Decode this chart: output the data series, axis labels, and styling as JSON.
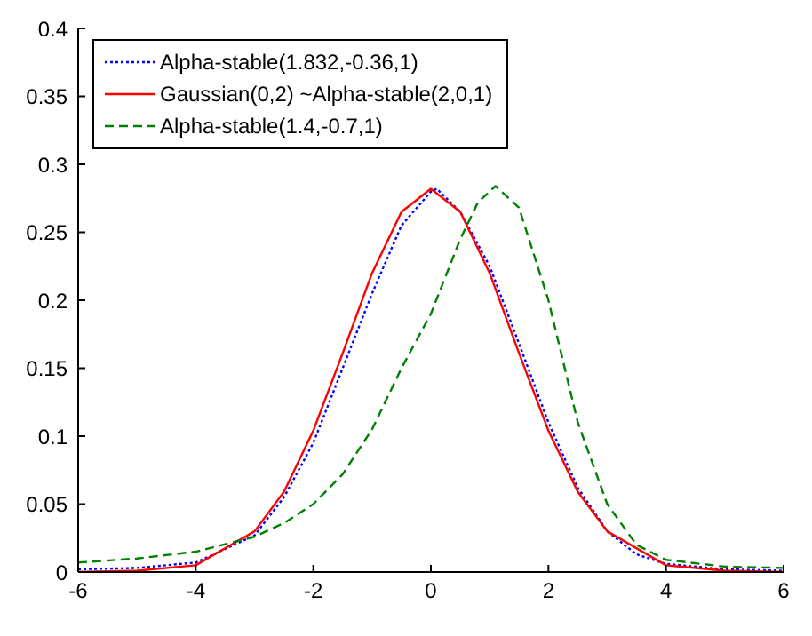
{
  "chart_data": {
    "type": "line",
    "xlim": [
      -6,
      6
    ],
    "xticks": [
      -6,
      -4,
      -2,
      0,
      2,
      4,
      6
    ],
    "ylim": [
      0,
      0.4
    ],
    "yticks": [
      0,
      0.05,
      0.1,
      0.15,
      0.2,
      0.25,
      0.3,
      0.35,
      0.4
    ],
    "grid": false,
    "legend": "top left",
    "marker": "none",
    "series": [
      {
        "name": "Alpha-stable(1.832,-0.36,1)",
        "color": "#0000ff",
        "line_style": "dotted",
        "x": [
          -6,
          -5,
          -4,
          -3,
          -2.5,
          -2,
          -1.5,
          -1,
          -0.5,
          0,
          0.1,
          0.5,
          1,
          1.5,
          2,
          2.5,
          3,
          3.5,
          4,
          5,
          6
        ],
        "values": [
          0.002,
          0.003,
          0.007,
          0.027,
          0.055,
          0.095,
          0.15,
          0.205,
          0.255,
          0.28,
          0.282,
          0.265,
          0.225,
          0.168,
          0.11,
          0.062,
          0.03,
          0.013,
          0.006,
          0.002,
          0.001
        ]
      },
      {
        "name": "Gaussian(0,2) ~Alpha-stable(2,0,1)",
        "color": "#ff0000",
        "line_style": "solid",
        "x": [
          -6,
          -5,
          -4,
          -3,
          -2.5,
          -2,
          -1.5,
          -1,
          -0.5,
          0,
          0.5,
          1,
          1.5,
          2,
          2.5,
          3,
          4,
          5,
          6
        ],
        "values": [
          0,
          0.001,
          0.005,
          0.03,
          0.059,
          0.104,
          0.161,
          0.22,
          0.265,
          0.282,
          0.265,
          0.22,
          0.161,
          0.104,
          0.059,
          0.03,
          0.005,
          0.001,
          0
        ]
      },
      {
        "name": "Alpha-stable(1.4,-0.7,1)",
        "color": "#008000",
        "line_style": "dashed",
        "x": [
          -6,
          -5,
          -4,
          -3,
          -2.5,
          -2,
          -1.5,
          -1,
          -0.5,
          0,
          0.5,
          0.8,
          1.1,
          1.5,
          2,
          2.5,
          3,
          3.5,
          4,
          5,
          6
        ],
        "values": [
          0.007,
          0.01,
          0.015,
          0.026,
          0.036,
          0.05,
          0.072,
          0.105,
          0.15,
          0.19,
          0.245,
          0.272,
          0.284,
          0.268,
          0.2,
          0.11,
          0.05,
          0.02,
          0.009,
          0.004,
          0.003
        ]
      }
    ]
  }
}
